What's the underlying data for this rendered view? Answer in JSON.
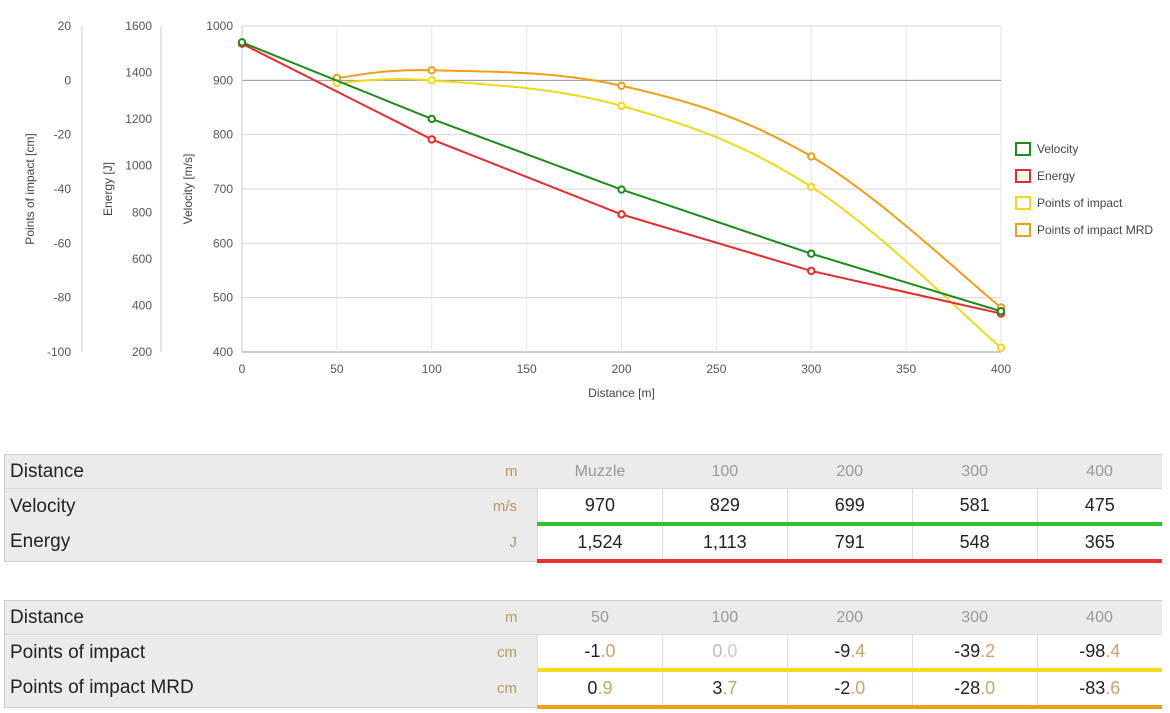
{
  "chart_data": {
    "type": "line",
    "xlabel": "Distance [m]",
    "x_ticks": [
      0,
      50,
      100,
      150,
      200,
      250,
      300,
      350,
      400
    ],
    "xlim": [
      0,
      400
    ],
    "grid": true,
    "legend_position": "right",
    "axes": [
      {
        "label": "Points of impact [cm]",
        "ticks": [
          20,
          0,
          -20,
          -40,
          -60,
          -80,
          -100
        ],
        "range": [
          -100,
          20
        ]
      },
      {
        "label": "Energy [J]",
        "ticks": [
          1600,
          1400,
          1200,
          1000,
          800,
          600,
          400,
          200
        ],
        "range": [
          200,
          1600
        ]
      },
      {
        "label": "Velocity [m/s]",
        "ticks": [
          1000,
          900,
          800,
          700,
          600,
          500,
          400
        ],
        "range": [
          400,
          1000
        ]
      }
    ],
    "series": [
      {
        "name": "Velocity",
        "color": "#1a8c1a",
        "axis": 2,
        "x": [
          0,
          100,
          200,
          300,
          400
        ],
        "y": [
          970,
          829,
          699,
          581,
          475
        ]
      },
      {
        "name": "Energy",
        "color": "#e82a2a",
        "axis": 1,
        "x": [
          0,
          100,
          200,
          300,
          400
        ],
        "y": [
          1524,
          1113,
          791,
          548,
          365
        ]
      },
      {
        "name": "Points of impact",
        "color": "#f2d916",
        "axis": 0,
        "x": [
          50,
          100,
          200,
          300,
          400
        ],
        "y": [
          -1.0,
          0.0,
          -9.4,
          -39.2,
          -98.4
        ]
      },
      {
        "name": "Points of impact MRD",
        "color": "#f29d16",
        "axis": 0,
        "x": [
          50,
          100,
          200,
          300,
          400
        ],
        "y": [
          0.9,
          3.7,
          -2.0,
          -28.0,
          -83.6
        ]
      }
    ]
  },
  "table1": {
    "header": {
      "label": "Distance",
      "unit": "m",
      "cols": [
        "Muzzle",
        "100",
        "200",
        "300",
        "400"
      ]
    },
    "rows": [
      {
        "label": "Velocity",
        "unit": "m/s",
        "color": "#2ec42e",
        "values": [
          {
            "int": "970",
            "dec": ""
          },
          {
            "int": "829",
            "dec": ""
          },
          {
            "int": "699",
            "dec": ""
          },
          {
            "int": "581",
            "dec": ""
          },
          {
            "int": "475",
            "dec": ""
          }
        ]
      },
      {
        "label": "Energy",
        "unit": "J",
        "color": "#ea3030",
        "values": [
          {
            "int": "1,524",
            "dec": ""
          },
          {
            "int": "1,113",
            "dec": ""
          },
          {
            "int": "791",
            "dec": ""
          },
          {
            "int": "548",
            "dec": ""
          },
          {
            "int": "365",
            "dec": ""
          }
        ]
      }
    ]
  },
  "table2": {
    "header": {
      "label": "Distance",
      "unit": "m",
      "cols": [
        "50",
        "100",
        "200",
        "300",
        "400"
      ]
    },
    "rows": [
      {
        "label": "Points of impact",
        "unit": "cm",
        "color": "#f5dc1e",
        "values": [
          {
            "int": "-1",
            "dec": ".0"
          },
          {
            "int": "0",
            "dec": ".0"
          },
          {
            "int": "-9",
            "dec": ".4"
          },
          {
            "int": "-39",
            "dec": ".2"
          },
          {
            "int": "-98",
            "dec": ".4"
          }
        ]
      },
      {
        "label": "Points of impact MRD",
        "unit": "cm",
        "color": "#f29d16",
        "values": [
          {
            "int": "0",
            "dec": ".9"
          },
          {
            "int": "3",
            "dec": ".7"
          },
          {
            "int": "-2",
            "dec": ".0"
          },
          {
            "int": "-28",
            "dec": ".0"
          },
          {
            "int": "-83",
            "dec": ".6"
          }
        ]
      }
    ]
  }
}
